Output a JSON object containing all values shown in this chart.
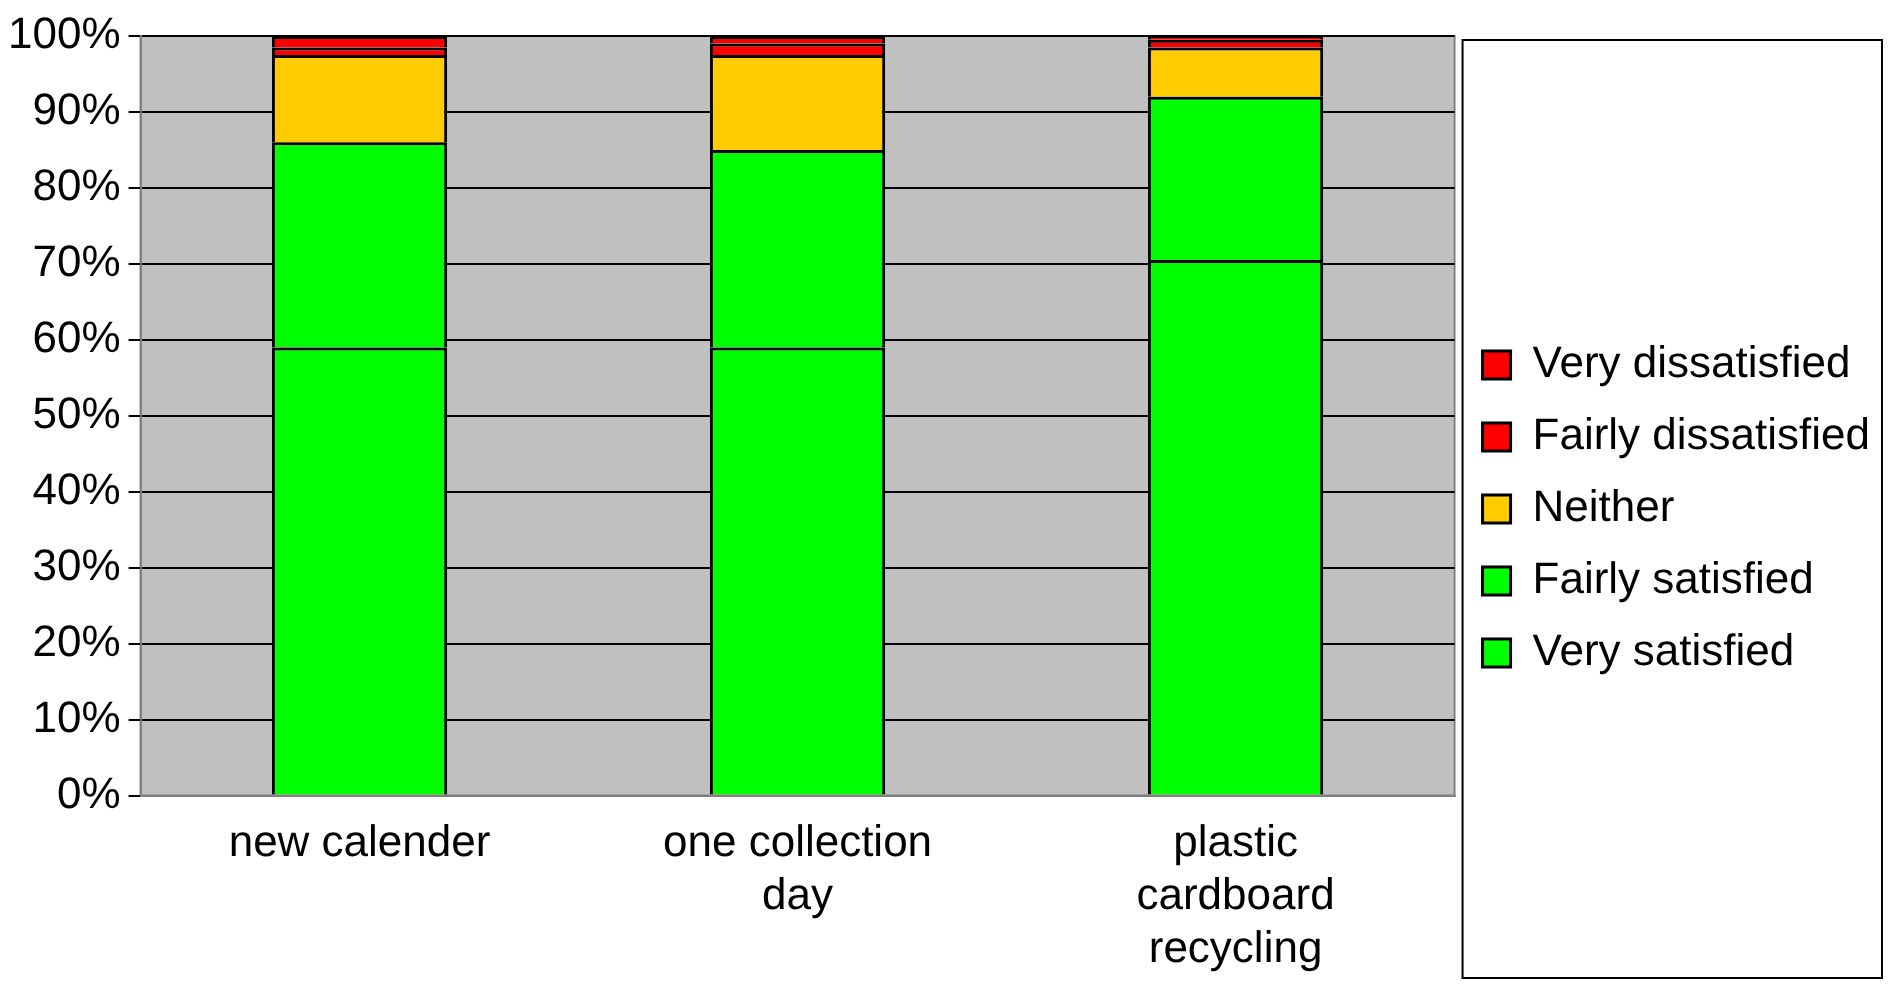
{
  "chart_data": {
    "type": "bar",
    "stacked": true,
    "categories": [
      "new calender",
      "one collection day",
      "plastic cardboard recycling"
    ],
    "series": [
      {
        "name": "Very satisfied",
        "color": "#00ff00",
        "values": [
          59,
          59,
          70.5
        ]
      },
      {
        "name": "Fairly satisfied",
        "color": "#00ff00",
        "values": [
          27,
          26,
          21.5
        ]
      },
      {
        "name": "Neither",
        "color": "#ffcc00",
        "values": [
          11.5,
          12.5,
          6.5
        ]
      },
      {
        "name": "Fairly dissatisfied",
        "color": "#ff0000",
        "values": [
          1,
          1.5,
          1
        ]
      },
      {
        "name": "Very dissatisfied",
        "color": "#ff0000",
        "values": [
          1.5,
          1,
          0.5
        ]
      }
    ],
    "ylim": [
      0,
      100
    ],
    "yticks": [
      {
        "value": 0,
        "label": "0%"
      },
      {
        "value": 10,
        "label": "10%"
      },
      {
        "value": 20,
        "label": "20%"
      },
      {
        "value": 30,
        "label": "30%"
      },
      {
        "value": 40,
        "label": "40%"
      },
      {
        "value": 50,
        "label": "50%"
      },
      {
        "value": 60,
        "label": "60%"
      },
      {
        "value": 70,
        "label": "70%"
      },
      {
        "value": 80,
        "label": "80%"
      },
      {
        "value": 90,
        "label": "90%"
      },
      {
        "value": 100,
        "label": "100%"
      }
    ],
    "grid": "y",
    "legend": "right"
  }
}
